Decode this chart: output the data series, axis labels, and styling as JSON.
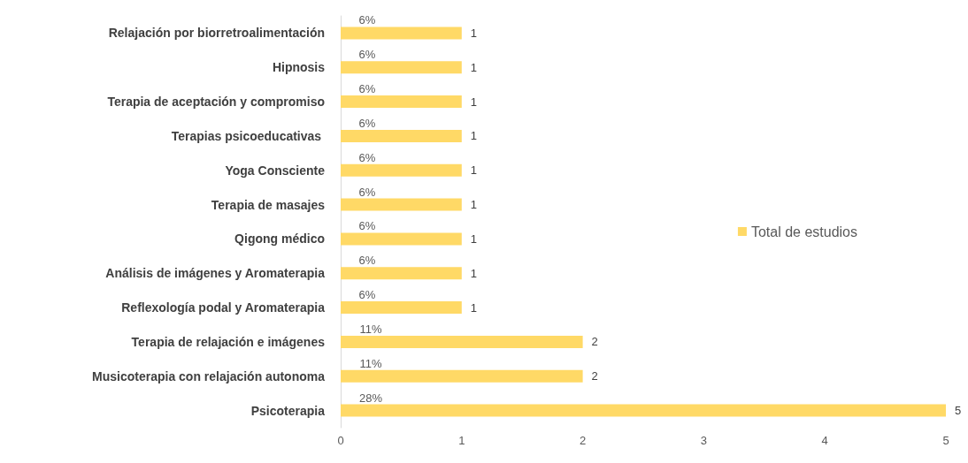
{
  "chart_data": {
    "type": "bar",
    "orientation": "horizontal",
    "categories": [
      "Relajación por biorretroalimentación",
      "Hipnosis",
      "Terapia de aceptación y compromiso",
      "Terapias psicoeducativas ",
      "Yoga Consciente",
      "Terapia de masajes",
      "Qigong médico",
      "Análisis de imágenes y Aromaterapia",
      "Reflexología podal y Aromaterapia",
      "Terapia de relajación e imágenes",
      "Musicoterapia con relajación autonoma",
      "Psicoterapia"
    ],
    "series": [
      {
        "name": "Total de estudios",
        "color": "#ffd966",
        "values": [
          1,
          1,
          1,
          1,
          1,
          1,
          1,
          1,
          1,
          2,
          2,
          5
        ]
      }
    ],
    "xlim": [
      0,
      5
    ],
    "xticks": [
      0,
      1,
      2,
      3,
      4,
      5
    ],
    "grid": false,
    "legend": "right",
    "data_labels": true,
    "annotations": [
      "6%",
      "6%",
      "6%",
      "6%",
      "6%",
      "6%",
      "6%",
      "6%",
      "6%",
      "11%",
      "11%",
      "28%"
    ]
  }
}
